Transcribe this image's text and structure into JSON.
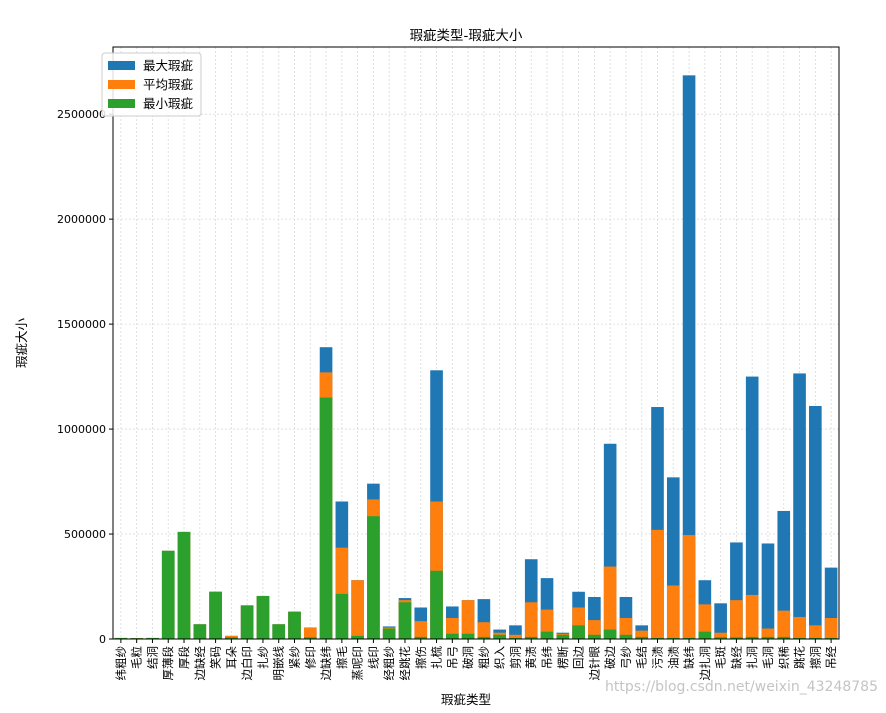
{
  "chart_data": {
    "type": "bar",
    "title": "瑕疵类型-瑕疵大小",
    "xlabel": "瑕疵类型",
    "ylabel": "瑕疵大小",
    "ylim": [
      0,
      2820000
    ],
    "yticks": [
      0,
      500000,
      1000000,
      1500000,
      2000000,
      2500000
    ],
    "grid": true,
    "legend_position": "top-left",
    "categories": [
      "纬粗纱",
      "毛粒",
      "结洞",
      "厚薄段",
      "厚段",
      "边缺经",
      "笑码",
      "耳朵",
      "边白印",
      "扎纱",
      "明嵌线",
      "紧纱",
      "修印",
      "边缺纬",
      "擦毛",
      "蒸呢印",
      "线印",
      "经粗纱",
      "经跳花",
      "擦伤",
      "扎梳",
      "吊弓",
      "破洞",
      "粗纱",
      "织入",
      "剪洞",
      "黄渍",
      "吊纬",
      "楞断",
      "回边",
      "边针眼",
      "破边",
      "弓纱",
      "毛结",
      "污渍",
      "油渍",
      "缺纬",
      "边扎洞",
      "毛斑",
      "缺经",
      "扎洞",
      "毛洞",
      "织稀",
      "跳花",
      "擦洞",
      "吊经"
    ],
    "series": [
      {
        "name": "最大瑕疵",
        "color": "#1f77b4",
        "values": [
          5000,
          4000,
          5000,
          420000,
          510000,
          70000,
          225000,
          15000,
          160000,
          205000,
          70000,
          130000,
          55000,
          1390000,
          655000,
          280000,
          740000,
          60000,
          195000,
          150000,
          1280000,
          155000,
          185000,
          190000,
          45000,
          65000,
          380000,
          290000,
          30000,
          225000,
          200000,
          930000,
          200000,
          65000,
          1105000,
          770000,
          2685000,
          280000,
          170000,
          460000,
          1250000,
          455000,
          610000,
          1265000,
          1110000,
          340000
        ]
      },
      {
        "name": "平均瑕疵",
        "color": "#ff7f0e",
        "values": [
          5000,
          4000,
          5000,
          420000,
          510000,
          70000,
          225000,
          15000,
          160000,
          205000,
          70000,
          130000,
          55000,
          1270000,
          435000,
          280000,
          665000,
          55000,
          185000,
          85000,
          655000,
          100000,
          185000,
          80000,
          30000,
          20000,
          175000,
          140000,
          25000,
          150000,
          90000,
          345000,
          100000,
          40000,
          520000,
          255000,
          495000,
          165000,
          30000,
          185000,
          210000,
          50000,
          135000,
          105000,
          65000,
          100000
        ]
      },
      {
        "name": "最小瑕疵",
        "color": "#2ca02c",
        "values": [
          5000,
          4000,
          5000,
          420000,
          510000,
          70000,
          225000,
          8000,
          160000,
          205000,
          70000,
          130000,
          8000,
          1150000,
          215000,
          15000,
          585000,
          50000,
          175000,
          10000,
          325000,
          25000,
          25000,
          10000,
          20000,
          5000,
          10000,
          35000,
          20000,
          65000,
          20000,
          45000,
          20000,
          10000,
          5000,
          5000,
          5000,
          35000,
          8000,
          8000,
          10000,
          10000,
          10000,
          5000,
          5000,
          5000
        ]
      }
    ]
  },
  "watermark": "https://blog.csdn.net/weixin_43248785"
}
